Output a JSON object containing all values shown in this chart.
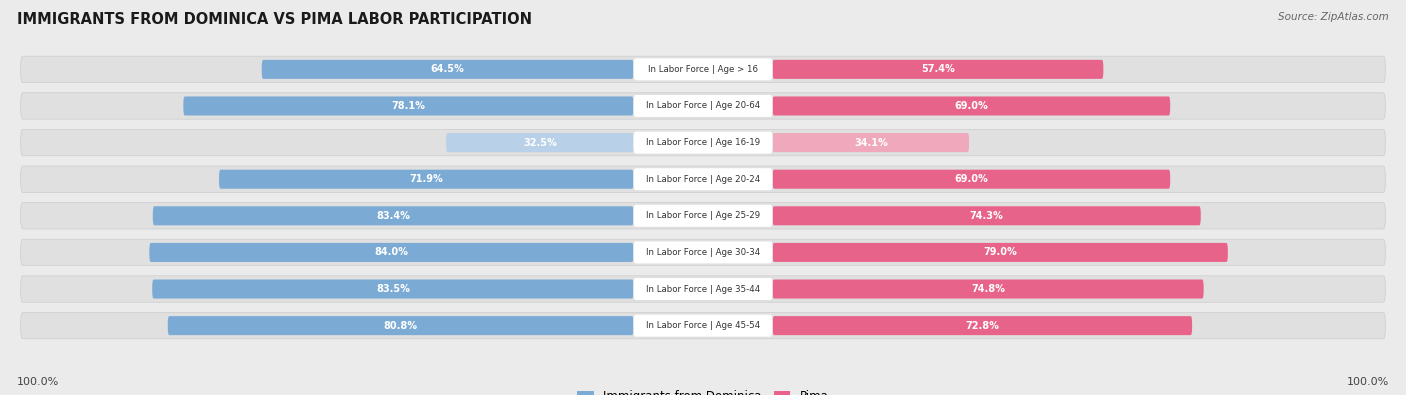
{
  "title": "IMMIGRANTS FROM DOMINICA VS PIMA LABOR PARTICIPATION",
  "source": "Source: ZipAtlas.com",
  "categories": [
    "In Labor Force | Age > 16",
    "In Labor Force | Age 20-64",
    "In Labor Force | Age 16-19",
    "In Labor Force | Age 20-24",
    "In Labor Force | Age 25-29",
    "In Labor Force | Age 30-34",
    "In Labor Force | Age 35-44",
    "In Labor Force | Age 45-54"
  ],
  "dominica_values": [
    64.5,
    78.1,
    32.5,
    71.9,
    83.4,
    84.0,
    83.5,
    80.8
  ],
  "pima_values": [
    57.4,
    69.0,
    34.1,
    69.0,
    74.3,
    79.0,
    74.8,
    72.8
  ],
  "dominica_color_full": "#7baad4",
  "dominica_color_light": "#b8d0e8",
  "pima_color_full": "#e8638a",
  "pima_color_light": "#f0a8bc",
  "bg_color": "#ebebeb",
  "row_bg_color": "#e0e0e0",
  "bar_bg": "#ffffff",
  "max_value": 100.0,
  "legend_label_dominica": "Immigrants from Dominica",
  "legend_label_pima": "Pima",
  "left_label": "100.0%",
  "right_label": "100.0%",
  "low_threshold": 50
}
